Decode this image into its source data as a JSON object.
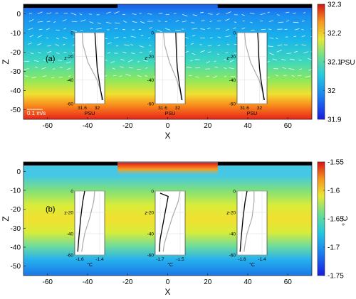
{
  "chart_data": [
    {
      "type": "heatmap",
      "panel_label": "(a)",
      "xlabel": "X",
      "ylabel": "Z",
      "xlim": [
        -72,
        72
      ],
      "ylim": [
        -55,
        5
      ],
      "xticks": [
        -60,
        -40,
        -20,
        0,
        20,
        40,
        60
      ],
      "yticks": [
        0,
        -10,
        -20,
        -30,
        -40,
        -50
      ],
      "ice_cover": [
        [
          -72,
          -25
        ],
        [
          25,
          72
        ]
      ],
      "colorbar": {
        "unit": "PSU",
        "min": 31.9,
        "max": 32.3,
        "ticks": [
          31.9,
          32,
          32.1,
          32.2,
          32.3
        ]
      },
      "vector_scale_label": "0.1 m/s",
      "insets": [
        {
          "xlabel": "PSU",
          "ylabel": "z",
          "xticks": [
            "31.6",
            "32"
          ],
          "xlim": [
            31.4,
            32.2
          ],
          "ylim": [
            -60,
            0
          ],
          "yticks": [
            0,
            -20,
            -40,
            -60
          ],
          "profile_black": [
            [
              31.94,
              0
            ],
            [
              31.96,
              -10
            ],
            [
              31.98,
              -20
            ],
            [
              32.0,
              -30
            ],
            [
              32.05,
              -40
            ],
            [
              32.1,
              -50
            ],
            [
              32.15,
              -57
            ]
          ],
          "profile_gray": [
            [
              31.6,
              0
            ],
            [
              31.62,
              -10
            ],
            [
              31.75,
              -25
            ],
            [
              32.0,
              -40
            ],
            [
              32.1,
              -50
            ],
            [
              32.12,
              -57
            ]
          ]
        },
        {
          "xlabel": "PSU",
          "ylabel": "z",
          "xticks": [
            "31.6",
            "32"
          ],
          "xlim": [
            31.4,
            32.2
          ],
          "ylim": [
            -60,
            0
          ],
          "yticks": [
            0,
            -20,
            -40,
            -60
          ],
          "profile_black": [
            [
              31.95,
              0
            ],
            [
              31.96,
              -10
            ],
            [
              31.97,
              -20
            ],
            [
              31.99,
              -30
            ],
            [
              32.03,
              -40
            ],
            [
              32.08,
              -50
            ],
            [
              32.12,
              -57
            ]
          ],
          "profile_gray": [
            [
              31.62,
              0
            ],
            [
              31.65,
              -10
            ],
            [
              31.78,
              -25
            ],
            [
              31.98,
              -40
            ],
            [
              32.07,
              -50
            ],
            [
              32.1,
              -57
            ]
          ]
        },
        {
          "xlabel": "PSU",
          "ylabel": "z",
          "xticks": [
            "31.6",
            "32"
          ],
          "xlim": [
            31.4,
            32.2
          ],
          "ylim": [
            -60,
            0
          ],
          "yticks": [
            0,
            -20,
            -40,
            -60
          ],
          "profile_black": [
            [
              31.95,
              0
            ],
            [
              31.97,
              -10
            ],
            [
              31.98,
              -20
            ],
            [
              32.0,
              -30
            ],
            [
              32.04,
              -40
            ],
            [
              32.09,
              -50
            ],
            [
              32.13,
              -57
            ]
          ],
          "profile_gray": [
            [
              31.6,
              0
            ],
            [
              31.63,
              -10
            ],
            [
              31.76,
              -25
            ],
            [
              31.99,
              -40
            ],
            [
              32.08,
              -50
            ],
            [
              32.11,
              -57
            ]
          ]
        }
      ]
    },
    {
      "type": "heatmap",
      "panel_label": "(b)",
      "xlabel": "X",
      "ylabel": "Z",
      "xlim": [
        -72,
        72
      ],
      "ylim": [
        -55,
        5
      ],
      "xticks": [
        -60,
        -40,
        -20,
        0,
        20,
        40,
        60
      ],
      "yticks": [
        0,
        -10,
        -20,
        -30,
        -40,
        -50
      ],
      "ice_cover": [
        [
          -72,
          -25
        ],
        [
          25,
          72
        ]
      ],
      "colorbar": {
        "unit": "° C",
        "min": -1.75,
        "max": -1.55,
        "ticks": [
          -1.55,
          -1.6,
          -1.65,
          -1.7,
          -1.75
        ]
      },
      "insets": [
        {
          "xlabel": "°C",
          "ylabel": "z",
          "xticks": [
            "-1.6",
            "-1.4"
          ],
          "xlim": [
            -1.65,
            -1.35
          ],
          "ylim": [
            -60,
            0
          ],
          "yticks": [
            0,
            -20,
            -40,
            -60
          ],
          "profile_black": [
            [
              -1.55,
              0
            ],
            [
              -1.57,
              -10
            ],
            [
              -1.59,
              -25
            ],
            [
              -1.6,
              -35
            ],
            [
              -1.61,
              -45
            ],
            [
              -1.62,
              -57
            ]
          ],
          "profile_gray": [
            [
              -1.45,
              0
            ],
            [
              -1.46,
              -10
            ],
            [
              -1.5,
              -25
            ],
            [
              -1.55,
              -40
            ],
            [
              -1.57,
              -50
            ],
            [
              -1.58,
              -57
            ]
          ]
        },
        {
          "xlabel": "°C",
          "ylabel": "z",
          "xticks": [
            "-1.7",
            "-1.5"
          ],
          "xlim": [
            -1.75,
            -1.45
          ],
          "ylim": [
            -60,
            0
          ],
          "yticks": [
            0,
            -20,
            -40,
            -60
          ],
          "profile_black": [
            [
              -1.7,
              -2
            ],
            [
              -1.62,
              -5
            ],
            [
              -1.64,
              -15
            ],
            [
              -1.66,
              -25
            ],
            [
              -1.68,
              -35
            ],
            [
              -1.7,
              -45
            ],
            [
              -1.71,
              -57
            ]
          ],
          "profile_gray": [
            [
              -1.5,
              0
            ],
            [
              -1.52,
              -10
            ],
            [
              -1.58,
              -25
            ],
            [
              -1.63,
              -40
            ],
            [
              -1.66,
              -50
            ],
            [
              -1.67,
              -57
            ]
          ]
        },
        {
          "xlabel": "°C",
          "ylabel": "z",
          "xticks": [
            "-1.6",
            "-1.4"
          ],
          "xlim": [
            -1.65,
            -1.35
          ],
          "ylim": [
            -60,
            0
          ],
          "yticks": [
            0,
            -20,
            -40,
            -60
          ],
          "profile_black": [
            [
              -1.55,
              0
            ],
            [
              -1.57,
              -10
            ],
            [
              -1.59,
              -25
            ],
            [
              -1.6,
              -35
            ],
            [
              -1.61,
              -45
            ],
            [
              -1.62,
              -57
            ]
          ],
          "profile_gray": [
            [
              -1.48,
              0
            ],
            [
              -1.48,
              -10
            ],
            [
              -1.5,
              -25
            ],
            [
              -1.55,
              -40
            ],
            [
              -1.57,
              -50
            ],
            [
              -1.58,
              -57
            ]
          ]
        }
      ]
    }
  ]
}
